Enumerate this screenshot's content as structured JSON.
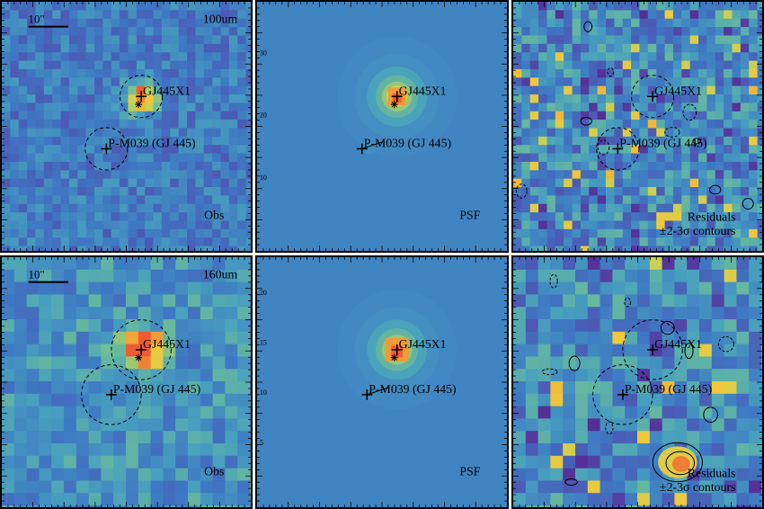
{
  "rows": [
    {
      "band": "100um",
      "scale_bar": "10\"",
      "panels": [
        {
          "kind": "obs",
          "label": "Obs",
          "seed": 11,
          "style": "noisy",
          "peak": "strong"
        },
        {
          "kind": "psf",
          "label": "PSF",
          "seed": 0,
          "style": "smooth",
          "peak": "strong"
        },
        {
          "kind": "res",
          "label": "Residuals",
          "label2": "±2-3σ contours",
          "seed": 23,
          "style": "residual",
          "peak": "none"
        }
      ]
    },
    {
      "band": "160um",
      "scale_bar": "10\"",
      "panels": [
        {
          "kind": "obs",
          "label": "Obs",
          "seed": 37,
          "style": "noisy",
          "peak": "strong"
        },
        {
          "kind": "psf",
          "label": "PSF",
          "seed": 0,
          "style": "smooth",
          "peak": "strong"
        },
        {
          "kind": "res",
          "label": "Residuals",
          "label2": "±2-3σ contours",
          "seed": 51,
          "style": "residual",
          "peak": "none"
        }
      ]
    }
  ],
  "sources": [
    {
      "name": "GJ445X1"
    },
    {
      "name": "P-M039 (GJ 445)"
    }
  ],
  "psf_axis_ticks": {
    "top_row": [
      "30",
      "20",
      "10"
    ],
    "bottom_row": [
      "20",
      "15",
      "10",
      "5"
    ]
  },
  "colors": {
    "low": "#5a1f8f",
    "mid": "#3f7fc0",
    "high": "#f2603a",
    "frame": "#000000"
  }
}
